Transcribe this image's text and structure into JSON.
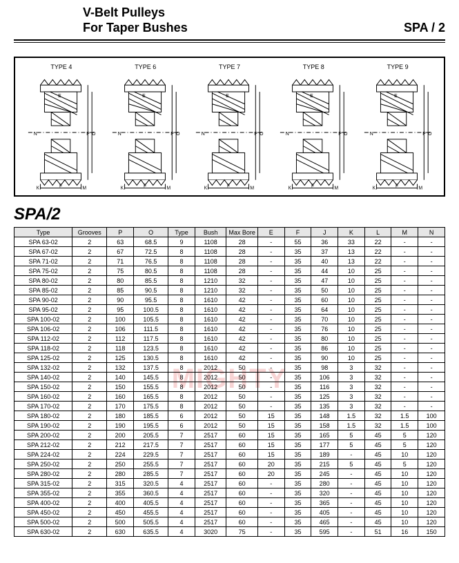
{
  "header": {
    "title_line1": "V-Belt  Pulleys",
    "title_line2": "For Taper Bushes",
    "right": "SPA / 2"
  },
  "diagrams": {
    "labels": [
      "TYPE 4",
      "TYPE 6",
      "TYPE 7",
      "TYPE 8",
      "TYPE 9"
    ]
  },
  "section_title": "SPA/2",
  "watermark": "MIGHTY",
  "table": {
    "columns": [
      "Type",
      "Grooves",
      "P",
      "O",
      "Type",
      "Bush",
      "Max Bore",
      "E",
      "F",
      "J",
      "K",
      "L",
      "M",
      "N"
    ],
    "col_widths": [
      "74",
      "44",
      "34",
      "44",
      "34",
      "40",
      "40",
      "34",
      "34",
      "34",
      "34",
      "34",
      "34",
      "34"
    ],
    "rows": [
      [
        "SPA  63-02",
        "2",
        "63",
        "68.5",
        "9",
        "1108",
        "28",
        "-",
        "55",
        "36",
        "33",
        "22",
        "-",
        "-"
      ],
      [
        "SPA  67-02",
        "2",
        "67",
        "72.5",
        "8",
        "1108",
        "28",
        "-",
        "35",
        "37",
        "13",
        "22",
        "-",
        "-"
      ],
      [
        "SPA  71-02",
        "2",
        "71",
        "76.5",
        "8",
        "1108",
        "28",
        "-",
        "35",
        "40",
        "13",
        "22",
        "-",
        "-"
      ],
      [
        "SPA  75-02",
        "2",
        "75",
        "80.5",
        "8",
        "1108",
        "28",
        "-",
        "35",
        "44",
        "10",
        "25",
        "-",
        "-"
      ],
      [
        "SPA  80-02",
        "2",
        "80",
        "85.5",
        "8",
        "1210",
        "32",
        "-",
        "35",
        "47",
        "10",
        "25",
        "-",
        "-"
      ],
      [
        "SPA  85-02",
        "2",
        "85",
        "90.5",
        "8",
        "1210",
        "32",
        "-",
        "35",
        "50",
        "10",
        "25",
        "-",
        "-"
      ],
      [
        "SPA  90-02",
        "2",
        "90",
        "95.5",
        "8",
        "1610",
        "42",
        "-",
        "35",
        "60",
        "10",
        "25",
        "-",
        "-"
      ],
      [
        "SPA  95-02",
        "2",
        "95",
        "100.5",
        "8",
        "1610",
        "42",
        "-",
        "35",
        "64",
        "10",
        "25",
        "-",
        "-"
      ],
      [
        "SPA  100-02",
        "2",
        "100",
        "105.5",
        "8",
        "1610",
        "42",
        "-",
        "35",
        "70",
        "10",
        "25",
        "-",
        "-"
      ],
      [
        "SPA  106-02",
        "2",
        "106",
        "111.5",
        "8",
        "1610",
        "42",
        "-",
        "35",
        "76",
        "10",
        "25",
        "-",
        "-"
      ],
      [
        "SPA  112-02",
        "2",
        "112",
        "117.5",
        "8",
        "1610",
        "42",
        "-",
        "35",
        "80",
        "10",
        "25",
        "-",
        "-"
      ],
      [
        "SPA  118-02",
        "2",
        "118",
        "123.5",
        "8",
        "1610",
        "42",
        "-",
        "35",
        "86",
        "10",
        "25",
        "-",
        "-"
      ],
      [
        "SPA  125-02",
        "2",
        "125",
        "130.5",
        "8",
        "1610",
        "42",
        "-",
        "35",
        "90",
        "10",
        "25",
        "-",
        "-"
      ],
      [
        "SPA  132-02",
        "2",
        "132",
        "137.5",
        "8",
        "2012",
        "50",
        "-",
        "35",
        "98",
        "3",
        "32",
        "-",
        "-"
      ],
      [
        "SPA  140-02",
        "2",
        "140",
        "145.5",
        "8",
        "2012",
        "50",
        "-",
        "35",
        "106",
        "3",
        "32",
        "-",
        "-"
      ],
      [
        "SPA  150-02",
        "2",
        "150",
        "155.5",
        "8",
        "2012",
        "50",
        "-",
        "35",
        "116",
        "3",
        "32",
        "-",
        "-"
      ],
      [
        "SPA  160-02",
        "2",
        "160",
        "165.5",
        "8",
        "2012",
        "50",
        "-",
        "35",
        "125",
        "3",
        "32",
        "-",
        "-"
      ],
      [
        "SPA  170-02",
        "2",
        "170",
        "175.5",
        "8",
        "2012",
        "50",
        "-",
        "35",
        "135",
        "3",
        "32",
        "-",
        "-"
      ],
      [
        "SPA  180-02",
        "2",
        "180",
        "185.5",
        "6",
        "2012",
        "50",
        "15",
        "35",
        "148",
        "1.5",
        "32",
        "1.5",
        "100"
      ],
      [
        "SPA  190-02",
        "2",
        "190",
        "195.5",
        "6",
        "2012",
        "50",
        "15",
        "35",
        "158",
        "1.5",
        "32",
        "1.5",
        "100"
      ],
      [
        "SPA  200-02",
        "2",
        "200",
        "205.5",
        "7",
        "2517",
        "60",
        "15",
        "35",
        "165",
        "5",
        "45",
        "5",
        "120"
      ],
      [
        "SPA  212-02",
        "2",
        "212",
        "217.5",
        "7",
        "2517",
        "60",
        "15",
        "35",
        "177",
        "5",
        "45",
        "5",
        "120"
      ],
      [
        "SPA  224-02",
        "2",
        "224",
        "229.5",
        "7",
        "2517",
        "60",
        "15",
        "35",
        "189",
        "-",
        "45",
        "10",
        "120"
      ],
      [
        "SPA  250-02",
        "2",
        "250",
        "255.5",
        "7",
        "2517",
        "60",
        "20",
        "35",
        "215",
        "5",
        "45",
        "5",
        "120"
      ],
      [
        "SPA  280-02",
        "2",
        "280",
        "285.5",
        "7",
        "2517",
        "60",
        "20",
        "35",
        "245",
        "-",
        "45",
        "10",
        "120"
      ],
      [
        "SPA  315-02",
        "2",
        "315",
        "320.5",
        "4",
        "2517",
        "60",
        "-",
        "35",
        "280",
        "-",
        "45",
        "10",
        "120"
      ],
      [
        "SPA  355-02",
        "2",
        "355",
        "360.5",
        "4",
        "2517",
        "60",
        "-",
        "35",
        "320",
        "-",
        "45",
        "10",
        "120"
      ],
      [
        "SPA  400-02",
        "2",
        "400",
        "405.5",
        "4",
        "2517",
        "60",
        "-",
        "35",
        "365",
        "-",
        "45",
        "10",
        "120"
      ],
      [
        "SPA  450-02",
        "2",
        "450",
        "455.5",
        "4",
        "2517",
        "60",
        "-",
        "35",
        "405",
        "-",
        "45",
        "10",
        "120"
      ],
      [
        "SPA  500-02",
        "2",
        "500",
        "505.5",
        "4",
        "2517",
        "60",
        "-",
        "35",
        "465",
        "-",
        "45",
        "10",
        "120"
      ],
      [
        "SPA  630-02",
        "2",
        "630",
        "635.5",
        "4",
        "3020",
        "75",
        "-",
        "35",
        "595",
        "-",
        "51",
        "16",
        "150"
      ]
    ]
  }
}
